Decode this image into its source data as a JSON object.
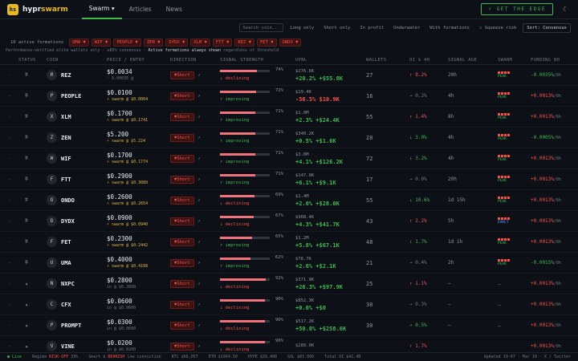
{
  "app": {
    "logo_text": "hs",
    "brand_a": "hypr",
    "brand_b": "swarm"
  },
  "nav": [
    {
      "label": "Swarm ▾"
    },
    {
      "label": "Articles"
    },
    {
      "label": "News"
    }
  ],
  "cta": "GET THE EDGE",
  "theme_icon": "moon-icon",
  "filters": {
    "search_placeholder": "Search coin...",
    "chips": [
      "Long only",
      "Short only",
      "In profit",
      "Underwater",
      "With formations",
      "☐ Squeeze risk"
    ],
    "sort": "Sort: Consensus"
  },
  "formations": {
    "label": "10 active formations",
    "tags": [
      "UMA ▼",
      "WIF ▼",
      "PEOPLE ▼",
      "ZEN ▼",
      "DYDX ▼",
      "XLM ▼",
      "FTT ▼",
      "REZ ▼",
      "FET ▼",
      "ONDO ▼"
    ]
  },
  "note": {
    "pre": "Performance-verified elite wallets only · ≥85% consensus · ",
    "bold": "Active formations always shown",
    "post": " regardless of threshold"
  },
  "headers": [
    "STATUS",
    "COIN",
    "PRICE / ENTRY",
    "DIRECTION",
    "SIGNAL STRENGTH",
    "UPNL",
    "WALLETS",
    "OI & 4H",
    "SIGNAL AGE",
    "SWARM",
    "FUNDING 8H"
  ],
  "rows": [
    {
      "star": "𖠃",
      "letter": "R",
      "coin": "REZ",
      "price": "$0.0034",
      "sub": "· 0.00035 @",
      "dir": "▼Short",
      "strength": 74,
      "pct": "74%",
      "trend": "↓ declining",
      "upnl_a": "$276.6K",
      "upnl_b": "+20.2% +$55.8K",
      "wallets": "27",
      "oi": "↑ 8.2%",
      "oi_c": "dn",
      "age": "20h",
      "swarm": "PEAK",
      "fund": "-0.0035%",
      "fund_s": "/8h",
      "fund_c": "up"
    },
    {
      "star": "𖠃",
      "letter": "P",
      "coin": "PEOPLE",
      "price": "$0.0100",
      "sub": "⚡ swarm @ $0.0064",
      "dir": "▼Short",
      "strength": 72,
      "pct": "72%",
      "trend": "↑ improving",
      "upnl_a": "$19.4K",
      "upnl_b": "-56.5% $10.9K",
      "wallets": "16",
      "oi": "→ 0.2%",
      "oi_c": "g",
      "age": "4h",
      "swarm": "PEAK",
      "fund": "+0.0013%",
      "fund_s": "/8h",
      "fund_c": "dn"
    },
    {
      "star": "𖠃",
      "letter": "X",
      "coin": "XLM",
      "price": "$0.1700",
      "sub": "⚡ swarm @ $0.1741",
      "dir": "▼Short",
      "strength": 71,
      "pct": "71%",
      "trend": "↑ improving",
      "upnl_a": "$1.0M",
      "upnl_b": "+2.3% +$24.4K",
      "wallets": "55",
      "oi": "↑ 1.4%",
      "oi_c": "dn",
      "age": "8h",
      "swarm": "PEAK",
      "fund": "+0.0013%",
      "fund_s": "/8h",
      "fund_c": "dn"
    },
    {
      "star": "𖠃",
      "letter": "Z",
      "coin": "ZEN",
      "price": "$5.200",
      "sub": "⚡ swarm @ $5.224",
      "dir": "▼Short",
      "strength": 71,
      "pct": "71%",
      "trend": "↑ improving",
      "upnl_a": "$340.2K",
      "upnl_b": "+0.5% +$1.6K",
      "wallets": "28",
      "oi": "↓ 3.0%",
      "oi_c": "up",
      "age": "4h",
      "swarm": "PEAK",
      "fund": "-0.0005%",
      "fund_s": "/8h",
      "fund_c": "up"
    },
    {
      "star": "𖠃",
      "letter": "W",
      "coin": "WIF",
      "price": "$0.1700",
      "sub": "⚡ swarm @ $0.1774",
      "dir": "▼Short",
      "strength": 71,
      "pct": "71%",
      "trend": "↑ improving",
      "upnl_a": "$3.0M",
      "upnl_b": "+4.1% +$126.2K",
      "wallets": "72",
      "oi": "↓ 3.2%",
      "oi_c": "up",
      "age": "4h",
      "swarm": "PEAK",
      "fund": "+0.0013%",
      "fund_s": "/8h",
      "fund_c": "dn"
    },
    {
      "star": "𖠃",
      "letter": "F",
      "coin": "FTT",
      "price": "$0.2900",
      "sub": "⚡ swarm @ $0.3089",
      "dir": "▼Short",
      "strength": 71,
      "pct": "71%",
      "trend": "↑ improving",
      "upnl_a": "$147.0K",
      "upnl_b": "+6.1% +$9.1K",
      "wallets": "17",
      "oi": "→ 0.0%",
      "oi_c": "g",
      "age": "20h",
      "swarm": "PEAK",
      "fund": "+0.0013%",
      "fund_s": "/8h",
      "fund_c": "dn"
    },
    {
      "star": "𖠃",
      "letter": "O",
      "coin": "ONDO",
      "price": "$0.2600",
      "sub": "⚡ swarm @ $0.2654",
      "dir": "▼Short",
      "strength": 69,
      "pct": "69%",
      "trend": "↓ declining",
      "upnl_a": "$1.4M",
      "upnl_b": "+2.0% +$28.0K",
      "wallets": "55",
      "oi": "↓ 10.6%",
      "oi_c": "up",
      "age": "1d 15h",
      "swarm": "PEAK",
      "fund": "+0.0013%",
      "fund_s": "/8h",
      "fund_c": "dn"
    },
    {
      "star": "𖠃",
      "letter": "D",
      "coin": "DYDX",
      "price": "$0.0900",
      "sub": "⚡ swarm @ $0.0940",
      "dir": "▼Short",
      "strength": 67,
      "pct": "67%",
      "trend": "↓ declining",
      "upnl_a": "$968.4K",
      "upnl_b": "+4.3% +$41.7K",
      "wallets": "43",
      "oi": "↑ 2.2%",
      "oi_c": "dn",
      "age": "5h",
      "swarm": "EARLY",
      "fund": "+0.0013%",
      "fund_s": "/8h",
      "fund_c": "dn"
    },
    {
      "star": "𖠃",
      "letter": "F",
      "coin": "FET",
      "price": "$0.2300",
      "sub": "⚡ swarm @ $0.2442",
      "dir": "▼Short",
      "strength": 65,
      "pct": "65%",
      "trend": "↑ improving",
      "upnl_a": "$1.2M",
      "upnl_b": "+5.8% +$67.1K",
      "wallets": "48",
      "oi": "↓ 1.7%",
      "oi_c": "up",
      "age": "1d 1h",
      "swarm": "PEAK",
      "fund": "+0.0013%",
      "fund_s": "/8h",
      "fund_c": "dn"
    },
    {
      "star": "𖠃",
      "letter": "U",
      "coin": "UMA",
      "price": "$0.4000",
      "sub": "⚡ swarm @ $0.4108",
      "dir": "▼Short",
      "strength": 62,
      "pct": "62%",
      "trend": "↑ improving",
      "upnl_a": "$78.7K",
      "upnl_b": "+2.6% +$2.1K",
      "wallets": "21",
      "oi": "→ 0.4%",
      "oi_c": "g",
      "age": "2h",
      "swarm": "PEAK",
      "fund": "-0.0015%",
      "fund_s": "/8h",
      "fund_c": "up"
    },
    {
      "star": "✦",
      "letter": "N",
      "coin": "NXPC",
      "price": "$0.2800",
      "sub": "in @ $0.3808",
      "dir": "▼Short",
      "strength": 92,
      "pct": "92%",
      "trend": "↓ declining",
      "upnl_a": "$371.9K",
      "upnl_b": "+26.3% +$97.9K",
      "wallets": "25",
      "oi": "↑ 1.1%",
      "oi_c": "dn",
      "age": "—",
      "swarm": "—",
      "fund": "+0.0013%",
      "fund_s": "/8h",
      "fund_c": "dn"
    },
    {
      "star": "✦",
      "letter": "C",
      "coin": "CFX",
      "price": "$0.0600",
      "sub": "in @ $0.0600",
      "dir": "▼Short",
      "strength": 90,
      "pct": "90%",
      "trend": "↓ declining",
      "upnl_a": "$852.3K",
      "upnl_b": "+0.0% +$0",
      "wallets": "30",
      "oi": "→ 0.3%",
      "oi_c": "g",
      "age": "—",
      "swarm": "—",
      "fund": "+0.0013%",
      "fund_s": "/8h",
      "fund_c": "dn"
    },
    {
      "star": "✦",
      "letter": "P",
      "coin": "PROMPT",
      "price": "$0.0300",
      "sub": "in @ $0.0600",
      "dir": "▼Short",
      "strength": 90,
      "pct": "90%",
      "trend": "↓ declining",
      "upnl_a": "$517.2K",
      "upnl_b": "+50.0% +$258.6K",
      "wallets": "30",
      "oi": "→ 0.5%",
      "oi_c": "up",
      "age": "—",
      "swarm": "—",
      "fund": "+0.0013%",
      "fund_s": "/8h",
      "fund_c": "dn"
    },
    {
      "star": "✦",
      "letter": "V",
      "coin": "VINE",
      "price": "$0.0200",
      "sub": "in @ $0.0200",
      "dir": "▼Short",
      "strength": 90,
      "pct": "90%",
      "trend": "↓ declining",
      "upnl_a": "$289.0K",
      "upnl_b": "",
      "wallets": "",
      "oi": "↑ 1.7%",
      "oi_c": "dn",
      "age": "",
      "swarm": "",
      "fund": "+0.0013%",
      "fund_s": "/8h",
      "fund_c": "dn"
    }
  ],
  "footer": {
    "live": "● Live",
    "regime_label": "Regime",
    "regime": "RISK-OFF",
    "regime_pct": "33%",
    "smart": "Smart $ ",
    "smart_v": "BEARISH",
    "smart_s": "low conviction",
    "btc": "BTC  $66,057",
    "eth": "ETH  $1964.50",
    "hype": "HYPE $38.400",
    "sol": "SOL  $83.800",
    "total": "Total OI $42.4B",
    "updated": "Updated 19:47 · Mar 10 · X / Twitter"
  }
}
